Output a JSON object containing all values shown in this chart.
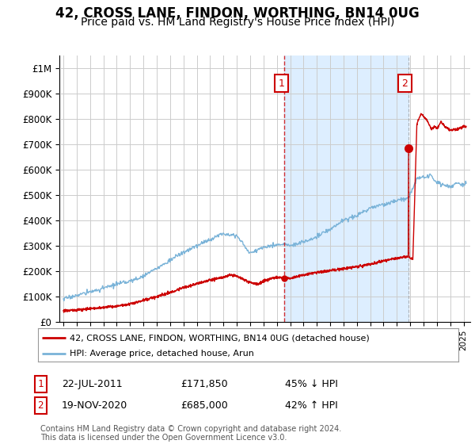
{
  "title": "42, CROSS LANE, FINDON, WORTHING, BN14 0UG",
  "subtitle": "Price paid vs. HM Land Registry's House Price Index (HPI)",
  "title_fontsize": 12,
  "subtitle_fontsize": 10,
  "ylabel_ticks": [
    "£0",
    "£100K",
    "£200K",
    "£300K",
    "£400K",
    "£500K",
    "£600K",
    "£700K",
    "£800K",
    "£900K",
    "£1M"
  ],
  "ytick_values": [
    0,
    100000,
    200000,
    300000,
    400000,
    500000,
    600000,
    700000,
    800000,
    900000,
    1000000
  ],
  "ylim": [
    0,
    1050000
  ],
  "xlim_start": 1994.7,
  "xlim_end": 2025.5,
  "hpi_color": "#7ab3d8",
  "price_color": "#cc0000",
  "shade_color": "#ddeeff",
  "sale1_date": 2011.55,
  "sale1_price": 171850,
  "sale2_date": 2020.9,
  "sale2_price": 685000,
  "legend_line1": "42, CROSS LANE, FINDON, WORTHING, BN14 0UG (detached house)",
  "legend_line2": "HPI: Average price, detached house, Arun",
  "annotation1_label": "1",
  "annotation1_date": "22-JUL-2011",
  "annotation1_price": "£171,850",
  "annotation1_hpi": "45% ↓ HPI",
  "annotation2_label": "2",
  "annotation2_date": "19-NOV-2020",
  "annotation2_price": "£685,000",
  "annotation2_hpi": "42% ↑ HPI",
  "footer": "Contains HM Land Registry data © Crown copyright and database right 2024.\nThis data is licensed under the Open Government Licence v3.0.",
  "background_color": "#ffffff",
  "grid_color": "#cccccc"
}
